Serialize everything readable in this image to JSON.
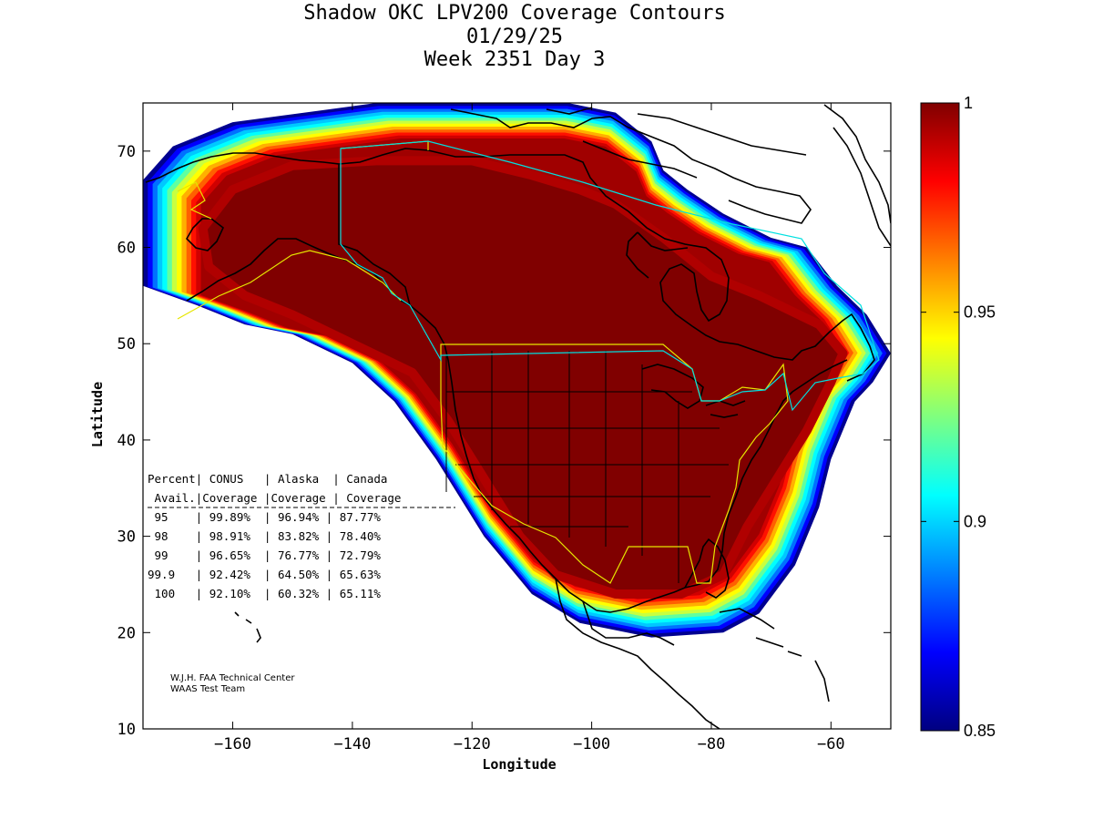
{
  "title": {
    "line1": "Shadow OKC LPV200 Coverage Contours",
    "line2": "01/29/25",
    "line3": "Week 2351 Day 3"
  },
  "axes": {
    "xlabel": "Longitude",
    "ylabel": "Latitude",
    "x_ticks": [
      {
        "value": -160,
        "label": "−160"
      },
      {
        "value": -140,
        "label": "−140"
      },
      {
        "value": -120,
        "label": "−120"
      },
      {
        "value": -100,
        "label": "−100"
      },
      {
        "value": -80,
        "label": "−80"
      },
      {
        "value": -60,
        "label": "−60"
      }
    ],
    "y_ticks": [
      {
        "value": 10,
        "label": "10"
      },
      {
        "value": 20,
        "label": "20"
      },
      {
        "value": 30,
        "label": "30"
      },
      {
        "value": 40,
        "label": "40"
      },
      {
        "value": 50,
        "label": "50"
      },
      {
        "value": 60,
        "label": "60"
      },
      {
        "value": 70,
        "label": "70"
      }
    ],
    "xlim": [
      -175,
      -50
    ],
    "ylim": [
      10,
      75
    ]
  },
  "colorbar": {
    "min": 0.85,
    "max": 1,
    "ticks": [
      {
        "value": 1,
        "label": "1"
      },
      {
        "value": 0.95,
        "label": "0.95"
      },
      {
        "value": 0.9,
        "label": "0.9"
      },
      {
        "value": 0.85,
        "label": "0.85"
      }
    ]
  },
  "table": {
    "header1": "Percent| CONUS   | Alaska  | Canada",
    "header2": " Avail.|Coverage |Coverage | Coverage",
    "separator": "-----------------------------------",
    "rows": [
      " 95    | 99.89%  | 96.94% | 87.77%",
      " 98    | 98.91%  | 83.82% | 78.40%",
      " 99    | 96.65%  | 76.77% | 72.79%",
      "99.9   | 92.42%  | 64.50% | 65.63%",
      " 100   | 92.10%  | 60.32% | 65.11%"
    ]
  },
  "credit": {
    "line1": "W.J.H. FAA Technical Center",
    "line2": "WAAS Test Team"
  },
  "chart_data": {
    "type": "heatmap",
    "title": "Shadow OKC LPV200 Coverage Contours",
    "subtitle": "01/29/25 Week 2351 Day 3",
    "xlabel": "Longitude",
    "ylabel": "Latitude",
    "xlim": [
      -175,
      -50
    ],
    "ylim": [
      10,
      75
    ],
    "color_range": [
      0.85,
      1
    ],
    "colormap": "jet",
    "coverage_region_outer": [
      [
        -175,
        67
      ],
      [
        -170,
        70.5
      ],
      [
        -160,
        73
      ],
      [
        -148,
        74
      ],
      [
        -136,
        75
      ],
      [
        -120,
        75
      ],
      [
        -104,
        75
      ],
      [
        -96,
        74
      ],
      [
        -90,
        71
      ],
      [
        -88,
        68
      ],
      [
        -84,
        66
      ],
      [
        -78,
        63.5
      ],
      [
        -70,
        61
      ],
      [
        -64,
        60
      ],
      [
        -59,
        56
      ],
      [
        -54,
        53
      ],
      [
        -50,
        49
      ],
      [
        -53,
        46
      ],
      [
        -56,
        44
      ],
      [
        -60,
        38
      ],
      [
        -62,
        33
      ],
      [
        -66,
        27
      ],
      [
        -72,
        22
      ],
      [
        -78,
        20
      ],
      [
        -90,
        19.5
      ],
      [
        -102,
        21
      ],
      [
        -110,
        24
      ],
      [
        -118,
        30
      ],
      [
        -126,
        38
      ],
      [
        -133,
        44
      ],
      [
        -140,
        48
      ],
      [
        -150,
        51
      ],
      [
        -158,
        52
      ],
      [
        -166,
        54
      ],
      [
        -175,
        56
      ]
    ],
    "coverage_region_core": [
      [
        -165,
        62
      ],
      [
        -160,
        66
      ],
      [
        -150,
        68.5
      ],
      [
        -136,
        69
      ],
      [
        -120,
        69
      ],
      [
        -110,
        67.5
      ],
      [
        -102,
        66
      ],
      [
        -96,
        64.5
      ],
      [
        -88,
        61
      ],
      [
        -80,
        57
      ],
      [
        -72,
        55
      ],
      [
        -62,
        52
      ],
      [
        -58,
        49
      ],
      [
        -60,
        46
      ],
      [
        -64,
        41
      ],
      [
        -68,
        37
      ],
      [
        -74,
        31
      ],
      [
        -78,
        26
      ],
      [
        -85,
        24
      ],
      [
        -96,
        24
      ],
      [
        -106,
        26
      ],
      [
        -112,
        30
      ],
      [
        -118,
        36
      ],
      [
        -124,
        42
      ],
      [
        -130,
        47
      ],
      [
        -140,
        50
      ],
      [
        -150,
        53
      ],
      [
        -158,
        55
      ],
      [
        -164,
        58
      ]
    ],
    "regions": [
      "CONUS",
      "Alaska",
      "Canada"
    ],
    "availability_table": [
      {
        "percent_avail": "95",
        "conus": "99.89%",
        "alaska": "96.94%",
        "canada": "87.77%"
      },
      {
        "percent_avail": "98",
        "conus": "98.91%",
        "alaska": "83.82%",
        "canada": "78.40%"
      },
      {
        "percent_avail": "99",
        "conus": "96.65%",
        "alaska": "76.77%",
        "canada": "72.79%"
      },
      {
        "percent_avail": "99.9",
        "conus": "92.42%",
        "alaska": "64.50%",
        "canada": "65.63%"
      },
      {
        "percent_avail": "100",
        "conus": "92.10%",
        "alaska": "60.32%",
        "canada": "65.11%"
      }
    ],
    "colors": {
      "core": "#800000",
      "outer_blue": "#0000cc",
      "border_yellow": "#dddd00",
      "border_cyan": "#00dddd"
    }
  }
}
